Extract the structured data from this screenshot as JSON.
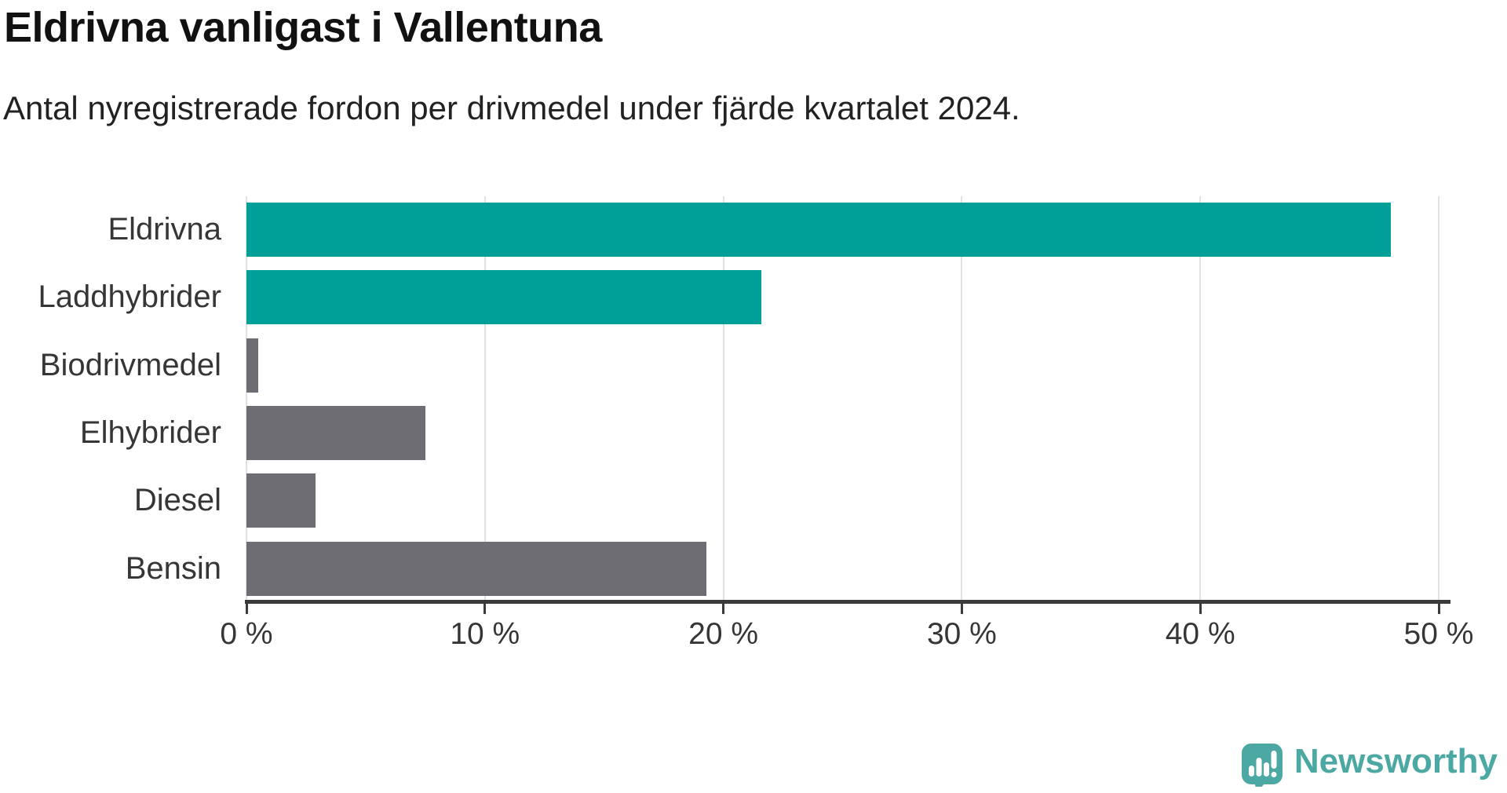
{
  "chart_data": {
    "type": "bar",
    "orientation": "horizontal",
    "title": "Eldrivna vanligast i Vallentuna",
    "subtitle": "Antal nyregistrerade fordon per drivmedel under fjärde kvartalet 2024.",
    "categories": [
      "Eldrivna",
      "Laddhybrider",
      "Biodrivmedel",
      "Elhybrider",
      "Diesel",
      "Bensin"
    ],
    "values": [
      48.0,
      21.6,
      0.5,
      7.5,
      2.9,
      19.3
    ],
    "unit": "%",
    "bar_colors": [
      "#00a099",
      "#00a099",
      "#6e6d73",
      "#6e6d73",
      "#6e6d73",
      "#6e6d73"
    ],
    "xlim": [
      0,
      50
    ],
    "x_ticks": [
      0,
      10,
      20,
      30,
      40,
      50
    ],
    "x_tick_labels": [
      "0 %",
      "10 %",
      "20 %",
      "30 %",
      "40 %",
      "50 %"
    ],
    "grid": "vertical-only",
    "legend": "none"
  },
  "colors": {
    "accent_teal": "#00a099",
    "neutral_gray": "#6e6d73",
    "axis": "#3a3a3a",
    "gridline": "#e2e2e2",
    "brand_teal": "#4ba8a2"
  },
  "branding": {
    "label": "Newsworthy"
  }
}
